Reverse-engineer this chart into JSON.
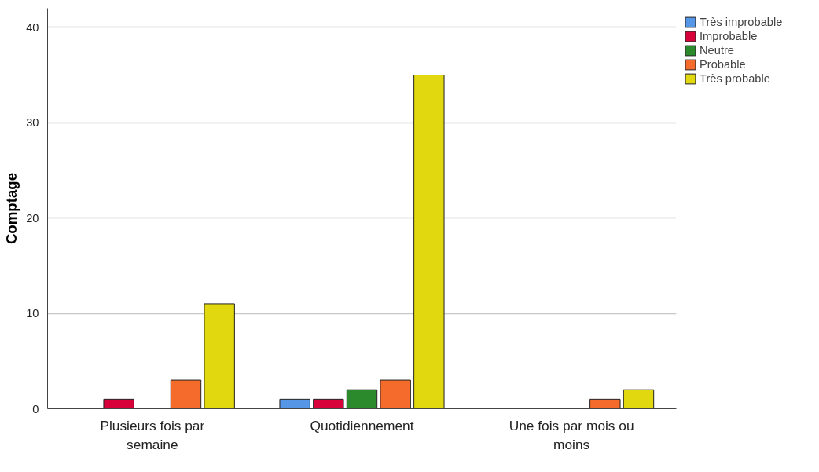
{
  "chart_data": {
    "type": "bar",
    "ylabel": "Comptage",
    "categories": [
      "Plusieurs fois par semaine",
      "Quotidiennement",
      "Une fois par mois ou moins"
    ],
    "series": [
      {
        "name": "Très improbable",
        "color": "#5596e6",
        "values": [
          null,
          1,
          null
        ]
      },
      {
        "name": "Improbable",
        "color": "#d8023a",
        "values": [
          1,
          1,
          null
        ]
      },
      {
        "name": "Neutre",
        "color": "#2b8a2b",
        "values": [
          null,
          2,
          null
        ]
      },
      {
        "name": "Probable",
        "color": "#f46b2c",
        "values": [
          3,
          3,
          1
        ]
      },
      {
        "name": "Très probable",
        "color": "#e2d810",
        "values": [
          11,
          35,
          2
        ]
      }
    ],
    "ylim": [
      0,
      42
    ],
    "yticks": [
      0,
      10,
      20,
      30,
      40
    ],
    "grid": "y",
    "legend": "top right"
  }
}
